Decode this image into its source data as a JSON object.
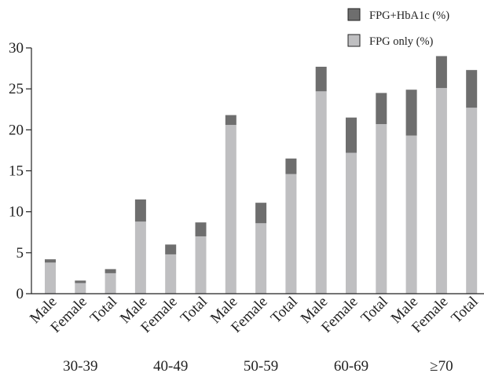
{
  "chart_data": {
    "type": "bar",
    "stacked": true,
    "title": "",
    "xlabel": "",
    "ylabel": "",
    "ylim": [
      0,
      30
    ],
    "yticks": [
      0,
      5,
      10,
      15,
      20,
      25,
      30
    ],
    "grid": false,
    "legend_position": "top-right",
    "groups": [
      "30-39",
      "40-49",
      "50-59",
      "60-69",
      "≥70"
    ],
    "categories": [
      "Male",
      "Female",
      "Total",
      "Male",
      "Female",
      "Total",
      "Male",
      "Female",
      "Total",
      "Male",
      "Female",
      "Total",
      "Male",
      "Female",
      "Total"
    ],
    "series": [
      {
        "name": "FPG only (%)",
        "color": "#bfbfc1",
        "values": [
          3.8,
          1.3,
          2.5,
          8.8,
          4.8,
          7.0,
          20.6,
          8.6,
          14.6,
          24.7,
          17.2,
          20.7,
          19.3,
          25.1,
          22.7
        ]
      },
      {
        "name": "FPG+HbA1c (%)",
        "color": "#6e6e6e",
        "values": [
          0.4,
          0.3,
          0.5,
          2.7,
          1.2,
          1.7,
          1.2,
          2.5,
          1.9,
          3.0,
          4.3,
          3.8,
          5.6,
          3.9,
          4.6
        ]
      }
    ],
    "legend": [
      {
        "label": "FPG+HbA1c (%)",
        "color": "#6e6e6e"
      },
      {
        "label": "FPG only (%)",
        "color": "#bfbfc1"
      }
    ]
  }
}
